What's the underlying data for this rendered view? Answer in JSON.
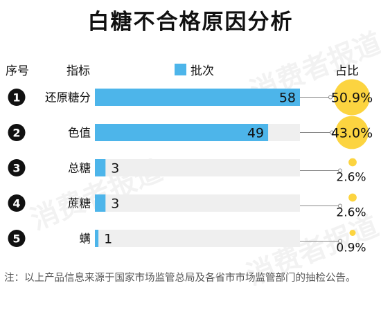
{
  "title": "白糖不合格原因分析",
  "headers": {
    "index": "序号",
    "indicator": "指标",
    "legend": "批次",
    "share": "占比"
  },
  "watermark": "消费者报道",
  "note": "注：以上产品信息来源于国家市场监管总局及各省市市场监管部门的抽检公告。",
  "colors": {
    "bar": "#4db5ea",
    "track": "#efefef",
    "bubble": "#fcd440",
    "connector": "#888888",
    "badge": "#111111"
  },
  "chart_data": {
    "type": "bar",
    "orientation": "horizontal",
    "categories": [
      "还原糖分",
      "色值",
      "总糖",
      "蔗糖",
      "螨"
    ],
    "index_labels": [
      "1",
      "2",
      "3",
      "4",
      "5"
    ],
    "series": [
      {
        "name": "批次",
        "values": [
          58,
          49,
          3,
          3,
          1
        ]
      }
    ],
    "value_labels": [
      "58",
      "49",
      "3",
      "3",
      "1"
    ],
    "share_labels": [
      "50.9%",
      "43.0%",
      "2.6%",
      "2.6%",
      "0.9%"
    ],
    "share_values": [
      50.9,
      43.0,
      2.6,
      2.6,
      0.9
    ],
    "xlim": [
      0,
      58
    ]
  }
}
